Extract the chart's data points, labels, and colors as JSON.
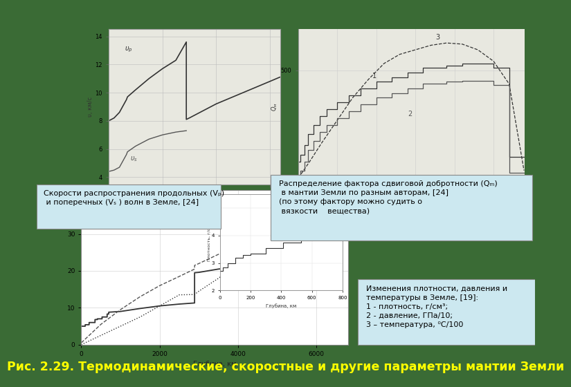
{
  "background_color": "#3a6b35",
  "title_text": "Рис. 2.29. Термодинамические, скоростные и другие параметры мантии Земли",
  "title_color": "#ffff00",
  "title_fontsize": 12.5,
  "box1_text": "Скорости распространения продольных (Vₚ)\n и поперечных (Vₛ ) волн в Земле, [24]",
  "box2_text": "Распределение фактора сдвиговой добротности (Qₘ)\n в мантии Земли по разным авторам, [24]\n(по этому фактору можно судить о\n вязкости    вещества)",
  "box3_text": "Изменения плотности, давления и\nтемпературы в Земле, [19]:\n1 - плотность, г/см³;\n2 - давление, ГПа/10;\n3 – температура, ⁰C/100",
  "plot_bg": "#e8e8e0",
  "plot_edge": "#999999",
  "curve_dark": "#333333",
  "curve_mid": "#555555",
  "curve_light": "#777777",
  "box_bg": "#cce8f0",
  "box_edge": "#888888",
  "label_fs": 8.0
}
